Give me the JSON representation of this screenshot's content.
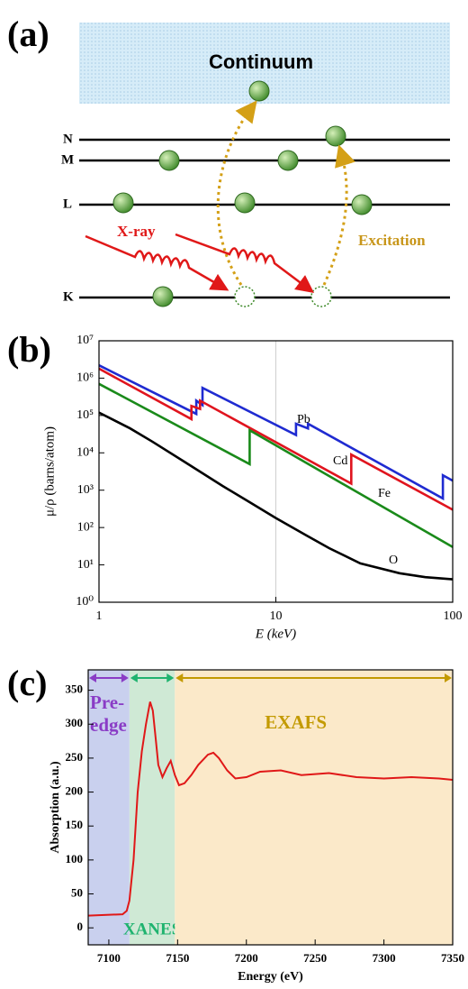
{
  "diagram": {
    "panel": "(a)",
    "continuum": "Continuum",
    "levels": [
      "N",
      "M",
      "L",
      "K"
    ],
    "xray": "X-ray",
    "excitation": "Excitation"
  },
  "chart_data": [
    {
      "type": "line",
      "panel": "(b)",
      "xlabel": "E (keV)",
      "ylabel": "μ/ρ (barns/atom)",
      "xscale": "log",
      "yscale": "log",
      "xlim": [
        1,
        100
      ],
      "ylim": [
        1,
        10000000
      ],
      "xticks": [
        1,
        10,
        100
      ],
      "yticks": [
        {
          "value": 1,
          "label": "10⁰"
        },
        {
          "value": 10,
          "label": "10¹"
        },
        {
          "value": 100,
          "label": "10²"
        },
        {
          "value": 1000,
          "label": "10³"
        },
        {
          "value": 10000,
          "label": "10⁴"
        },
        {
          "value": 100000,
          "label": "10⁵"
        },
        {
          "value": 1000000,
          "label": "10⁶"
        },
        {
          "value": 10000000,
          "label": "10⁷"
        }
      ],
      "xgrid": true,
      "series": [
        {
          "name": "Pb",
          "color": "#1f2bd1",
          "x": [
            1,
            3.55,
            3.55,
            3.85,
            3.85,
            13.0,
            13.0,
            15.2,
            15.2,
            88,
            88,
            100
          ],
          "values": [
            2200000,
            110000,
            250000,
            190000,
            550000,
            30000,
            60000,
            45000,
            60000,
            600,
            2500,
            1800
          ]
        },
        {
          "name": "Cd",
          "color": "#e0141e",
          "x": [
            1,
            3.33,
            3.33,
            3.73,
            3.73,
            26.7,
            26.7,
            100
          ],
          "values": [
            1800000,
            80000,
            180000,
            150000,
            250000,
            1500,
            9000,
            300
          ]
        },
        {
          "name": "Fe",
          "color": "#1a8a1a",
          "x": [
            1,
            7.11,
            7.11,
            100
          ],
          "values": [
            700000,
            5000,
            40000,
            30
          ]
        },
        {
          "name": "O",
          "color": "#000000",
          "x": [
            1,
            1.5,
            2,
            3,
            5,
            7,
            10,
            15,
            20,
            30,
            50,
            70,
            100
          ],
          "values": [
            120000,
            45000,
            20000,
            6000,
            1300,
            500,
            180,
            60,
            28,
            11,
            6,
            4.7,
            4.1
          ]
        }
      ]
    },
    {
      "type": "line",
      "panel": "(c)",
      "xlabel": "Energy (eV)",
      "ylabel": "Absorption (a.u.)",
      "xlim": [
        7085,
        7350
      ],
      "ylim": [
        -25,
        380
      ],
      "xticks": [
        7100,
        7150,
        7200,
        7250,
        7300,
        7350
      ],
      "yticks": [
        0,
        50,
        100,
        150,
        200,
        250,
        300,
        350
      ],
      "regions": [
        {
          "name": "Pre-edge",
          "start": 7085,
          "end": 7115,
          "color": "#c9d0ee",
          "arrow": "#8a3cc6"
        },
        {
          "name": "XANES",
          "start": 7115,
          "end": 7148,
          "color": "#cfe9d5",
          "arrow": "#1fb36f"
        },
        {
          "name": "EXAFS",
          "start": 7148,
          "end": 7350,
          "color": "#fbe9c9",
          "arrow": "#c39a00"
        }
      ],
      "series": [
        {
          "color": "#e01818",
          "x": [
            7085,
            7110,
            7113,
            7115,
            7118,
            7121,
            7124,
            7127,
            7130,
            7132,
            7134,
            7136,
            7139,
            7142,
            7145,
            7148,
            7151,
            7155,
            7160,
            7165,
            7172,
            7176,
            7180,
            7186,
            7192,
            7200,
            7210,
            7225,
            7240,
            7260,
            7280,
            7300,
            7320,
            7340,
            7350
          ],
          "values": [
            18,
            20,
            25,
            40,
            100,
            200,
            260,
            300,
            333,
            320,
            280,
            240,
            222,
            235,
            246,
            225,
            210,
            213,
            225,
            240,
            255,
            258,
            250,
            232,
            220,
            222,
            230,
            232,
            225,
            228,
            222,
            220,
            222,
            220,
            218
          ]
        }
      ]
    }
  ]
}
